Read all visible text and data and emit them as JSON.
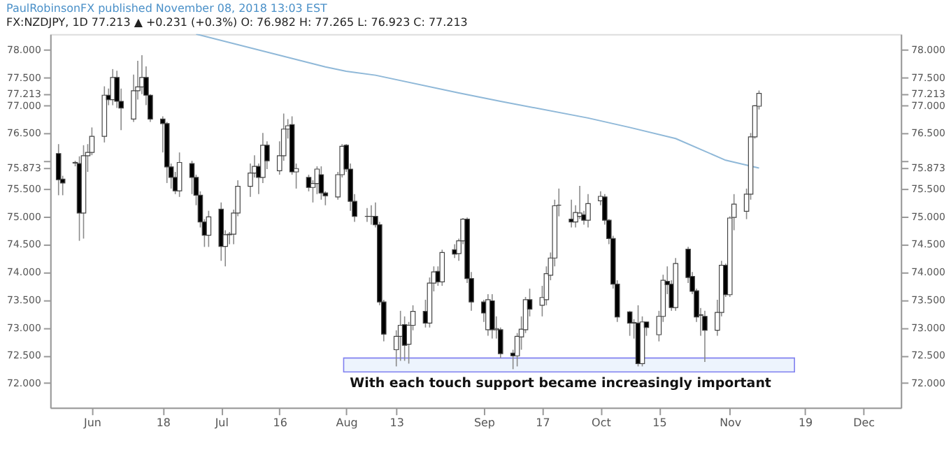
{
  "chart_data": {
    "type": "candlestick",
    "title": "PaulRobinsonFX published November 08, 2018 13:03 EST",
    "subtitle": "FX:NZDJPY, 1D 77.213 ▲ +0.231 (+0.3%) O: 76.982 H: 77.265 L: 76.923 C: 77.213",
    "annotations": [
      "With each touch support became increasingly important"
    ],
    "x": [
      "2018-05-24",
      "2018-05-25",
      "2018-05-28",
      "2018-05-29",
      "2018-05-30",
      "2018-05-31",
      "2018-06-01",
      "2018-06-04",
      "2018-06-05",
      "2018-06-06",
      "2018-06-07",
      "2018-06-08",
      "2018-06-11",
      "2018-06-12",
      "2018-06-13",
      "2018-06-14",
      "2018-06-15",
      "2018-06-18",
      "2018-06-19",
      "2018-06-20",
      "2018-06-21",
      "2018-06-22",
      "2018-06-25",
      "2018-06-26",
      "2018-06-27",
      "2018-06-28",
      "2018-06-29",
      "2018-07-02",
      "2018-07-03",
      "2018-07-04",
      "2018-07-05",
      "2018-07-06",
      "2018-07-09",
      "2018-07-10",
      "2018-07-11",
      "2018-07-12",
      "2018-07-13",
      "2018-07-16",
      "2018-07-17",
      "2018-07-18",
      "2018-07-19",
      "2018-07-20",
      "2018-07-23",
      "2018-07-24",
      "2018-07-25",
      "2018-07-26",
      "2018-07-27",
      "2018-07-30",
      "2018-07-31",
      "2018-08-01",
      "2018-08-02",
      "2018-08-03",
      "2018-08-06",
      "2018-08-07",
      "2018-08-08",
      "2018-08-09",
      "2018-08-10",
      "2018-08-13",
      "2018-08-14",
      "2018-08-15",
      "2018-08-16",
      "2018-08-17",
      "2018-08-20",
      "2018-08-21",
      "2018-08-22",
      "2018-08-23",
      "2018-08-24",
      "2018-08-27",
      "2018-08-28",
      "2018-08-29",
      "2018-08-30",
      "2018-08-31",
      "2018-09-03",
      "2018-09-04",
      "2018-09-05",
      "2018-09-06",
      "2018-09-07",
      "2018-09-10",
      "2018-09-11",
      "2018-09-12",
      "2018-09-13",
      "2018-09-14",
      "2018-09-17",
      "2018-09-18",
      "2018-09-19",
      "2018-09-20",
      "2018-09-21",
      "2018-09-24",
      "2018-09-25",
      "2018-09-26",
      "2018-09-27",
      "2018-09-28",
      "2018-10-01",
      "2018-10-02",
      "2018-10-03",
      "2018-10-04",
      "2018-10-05",
      "2018-10-08",
      "2018-10-09",
      "2018-10-10",
      "2018-10-11",
      "2018-10-12",
      "2018-10-15",
      "2018-10-16",
      "2018-10-17",
      "2018-10-18",
      "2018-10-19",
      "2018-10-22",
      "2018-10-23",
      "2018-10-24",
      "2018-10-25",
      "2018-10-26",
      "2018-10-29",
      "2018-10-30",
      "2018-10-31",
      "2018-11-01",
      "2018-11-02",
      "2018-11-05",
      "2018-11-06",
      "2018-11-07",
      "2018-11-08"
    ],
    "ohlc": [
      [
        76.13,
        76.3,
        75.38,
        75.66
      ],
      [
        75.67,
        75.73,
        75.38,
        75.6
      ],
      [
        75.97,
        76.0,
        75.9,
        75.96
      ],
      [
        75.95,
        76.08,
        74.56,
        75.06
      ],
      [
        75.06,
        76.28,
        74.6,
        76.09
      ],
      [
        76.09,
        76.3,
        75.8,
        76.15
      ],
      [
        76.15,
        76.6,
        76.1,
        76.44
      ],
      [
        76.44,
        77.34,
        76.33,
        77.18
      ],
      [
        77.18,
        77.3,
        77.0,
        77.1
      ],
      [
        77.1,
        77.65,
        77.0,
        77.5
      ],
      [
        77.5,
        77.62,
        76.95,
        77.07
      ],
      [
        77.07,
        77.3,
        76.55,
        76.95
      ],
      [
        76.75,
        77.55,
        76.7,
        77.26
      ],
      [
        77.26,
        77.8,
        77.1,
        77.33
      ],
      [
        77.33,
        77.9,
        77.2,
        77.5
      ],
      [
        77.5,
        77.7,
        77.0,
        77.18
      ],
      [
        77.18,
        77.2,
        76.7,
        76.75
      ],
      [
        76.75,
        76.8,
        76.15,
        76.67
      ],
      [
        76.67,
        76.7,
        75.6,
        75.89
      ],
      [
        75.89,
        75.95,
        75.5,
        75.7
      ],
      [
        75.7,
        75.8,
        75.4,
        75.46
      ],
      [
        75.46,
        76.15,
        75.35,
        75.97
      ],
      [
        75.95,
        76.0,
        75.4,
        75.7
      ],
      [
        75.7,
        75.75,
        75.2,
        75.38
      ],
      [
        75.38,
        75.45,
        74.8,
        74.9
      ],
      [
        74.9,
        74.95,
        74.45,
        74.66
      ],
      [
        74.66,
        75.1,
        74.45,
        74.99
      ],
      [
        75.13,
        75.25,
        74.2,
        74.46
      ],
      [
        74.46,
        74.75,
        74.1,
        74.67
      ],
      [
        74.68,
        74.72,
        74.5,
        74.67
      ],
      [
        74.68,
        75.12,
        74.5,
        75.06
      ],
      [
        75.06,
        75.65,
        75.0,
        75.54
      ],
      [
        75.54,
        75.95,
        75.35,
        75.78
      ],
      [
        75.78,
        76.1,
        75.7,
        75.9
      ],
      [
        75.9,
        75.95,
        75.4,
        75.7
      ],
      [
        75.7,
        76.5,
        75.6,
        76.28
      ],
      [
        76.28,
        76.35,
        75.85,
        76.0
      ],
      [
        75.82,
        76.35,
        75.75,
        76.09
      ],
      [
        76.09,
        76.85,
        76.0,
        76.57
      ],
      [
        76.57,
        76.75,
        76.4,
        76.63
      ],
      [
        76.65,
        76.8,
        75.75,
        75.8
      ],
      [
        75.8,
        75.95,
        75.5,
        75.86
      ],
      [
        75.7,
        75.75,
        75.45,
        75.52
      ],
      [
        75.52,
        75.65,
        75.25,
        75.59
      ],
      [
        75.59,
        75.9,
        75.4,
        75.85
      ],
      [
        75.75,
        75.9,
        75.3,
        75.42
      ],
      [
        75.42,
        75.45,
        75.2,
        75.37
      ],
      [
        75.35,
        75.8,
        75.3,
        75.75
      ],
      [
        75.75,
        76.3,
        75.7,
        76.26
      ],
      [
        76.28,
        76.3,
        75.8,
        75.85
      ],
      [
        75.85,
        75.95,
        75.1,
        75.27
      ],
      [
        75.27,
        75.4,
        74.9,
        75.0
      ],
      [
        75.0,
        75.15,
        74.9,
        75.0
      ],
      [
        75.0,
        75.2,
        74.85,
        75.0
      ],
      [
        75.0,
        75.25,
        74.8,
        74.85
      ],
      [
        74.85,
        74.9,
        73.4,
        73.46
      ],
      [
        73.46,
        73.5,
        72.75,
        72.88
      ],
      [
        72.6,
        72.95,
        72.3,
        72.84
      ],
      [
        72.84,
        73.3,
        72.4,
        73.04
      ],
      [
        73.05,
        73.2,
        72.4,
        72.68
      ],
      [
        72.7,
        73.1,
        72.35,
        73.04
      ],
      [
        73.04,
        73.4,
        72.95,
        73.29
      ],
      [
        73.29,
        73.5,
        73.0,
        73.08
      ],
      [
        73.08,
        73.9,
        73.0,
        73.8
      ],
      [
        73.8,
        74.1,
        73.65,
        74.0
      ],
      [
        74.01,
        74.1,
        73.75,
        73.82
      ],
      [
        73.82,
        74.4,
        73.75,
        74.35
      ],
      [
        74.4,
        74.5,
        74.25,
        74.32
      ],
      [
        74.33,
        74.6,
        74.2,
        74.56
      ],
      [
        74.56,
        74.97,
        74.5,
        74.95
      ],
      [
        74.95,
        74.98,
        73.8,
        73.88
      ],
      [
        73.88,
        74.0,
        73.3,
        73.46
      ],
      [
        73.46,
        73.5,
        73.1,
        73.26
      ],
      [
        72.96,
        73.6,
        72.85,
        73.5
      ],
      [
        73.48,
        73.6,
        72.8,
        72.96
      ],
      [
        72.96,
        73.2,
        72.8,
        72.98
      ],
      [
        72.96,
        73.0,
        72.45,
        72.53
      ],
      [
        72.54,
        72.6,
        72.25,
        72.49
      ],
      [
        72.49,
        72.9,
        72.3,
        72.84
      ],
      [
        72.83,
        73.2,
        72.6,
        72.97
      ],
      [
        72.96,
        73.55,
        72.9,
        73.5
      ],
      [
        73.5,
        73.7,
        73.2,
        73.33
      ],
      [
        73.4,
        73.75,
        73.2,
        73.54
      ],
      [
        73.5,
        74.1,
        73.4,
        73.97
      ],
      [
        73.94,
        74.35,
        73.85,
        74.25
      ],
      [
        74.25,
        75.3,
        74.1,
        75.19
      ],
      [
        75.2,
        75.5,
        75.0,
        75.2
      ],
      [
        74.95,
        75.3,
        74.8,
        74.9
      ],
      [
        74.9,
        75.2,
        74.8,
        75.07
      ],
      [
        75.0,
        75.55,
        74.95,
        75.06
      ],
      [
        75.03,
        75.1,
        74.85,
        74.93
      ],
      [
        74.93,
        75.4,
        74.8,
        75.23
      ],
      [
        75.28,
        75.45,
        75.2,
        75.36
      ],
      [
        75.35,
        75.4,
        74.85,
        74.93
      ],
      [
        74.93,
        74.95,
        74.5,
        74.6
      ],
      [
        74.6,
        74.65,
        73.7,
        73.78
      ],
      [
        73.78,
        73.85,
        73.1,
        73.19
      ],
      [
        73.28,
        73.3,
        72.85,
        73.08
      ],
      [
        73.09,
        73.15,
        72.8,
        73.08
      ],
      [
        73.08,
        73.4,
        72.3,
        72.35
      ],
      [
        72.35,
        73.2,
        72.3,
        73.1
      ],
      [
        73.1,
        73.1,
        72.85,
        73.0
      ],
      [
        72.87,
        73.3,
        72.75,
        73.2
      ],
      [
        73.2,
        73.95,
        73.1,
        73.85
      ],
      [
        73.83,
        74.1,
        73.6,
        73.77
      ],
      [
        73.78,
        73.85,
        73.3,
        73.36
      ],
      [
        73.36,
        74.25,
        73.3,
        74.15
      ],
      [
        74.41,
        74.45,
        73.8,
        73.9
      ],
      [
        73.92,
        74.0,
        73.6,
        73.65
      ],
      [
        73.66,
        73.7,
        73.1,
        73.19
      ],
      [
        73.23,
        73.35,
        72.85,
        73.22
      ],
      [
        73.2,
        73.3,
        72.38,
        72.95
      ],
      [
        72.95,
        73.5,
        72.85,
        73.27
      ],
      [
        73.27,
        74.2,
        73.2,
        74.12
      ],
      [
        74.12,
        74.15,
        73.55,
        73.59
      ],
      [
        73.59,
        75.0,
        73.55,
        74.97
      ],
      [
        74.98,
        75.4,
        74.75,
        75.22
      ],
      [
        75.09,
        75.5,
        74.95,
        75.4
      ],
      [
        75.4,
        76.5,
        75.3,
        76.43
      ],
      [
        76.43,
        77.0,
        76.4,
        76.99
      ],
      [
        76.982,
        77.265,
        76.923,
        77.213
      ]
    ],
    "series": [
      {
        "type": "line",
        "color": "#8fb8d8",
        "x": [
          "2018-06-26",
          "2018-07-27",
          "2018-08-01",
          "2018-08-08",
          "2018-08-28",
          "2018-09-07",
          "2018-09-28",
          "2018-10-08",
          "2018-10-19",
          "2018-10-31",
          "2018-11-08"
        ],
        "values": [
          78.28,
          77.69,
          77.61,
          77.54,
          77.22,
          77.07,
          76.77,
          76.6,
          76.4,
          76.01,
          75.87
        ]
      }
    ],
    "bands": [
      {
        "axis": "y",
        "from": 72.2,
        "to": 72.45,
        "color": "#edf4fd"
      }
    ],
    "xlim": [
      "2018-05-22",
      "2018-12-12"
    ],
    "xticks": [
      {
        "value": "2018-06-01",
        "label": "Jun"
      },
      {
        "value": "2018-06-18",
        "label": "18"
      },
      {
        "value": "2018-07-02",
        "label": "Jul"
      },
      {
        "value": "2018-07-16",
        "label": "16"
      },
      {
        "value": "2018-08-01",
        "label": "Aug"
      },
      {
        "value": "2018-08-13",
        "label": "13"
      },
      {
        "value": "2018-09-03",
        "label": "Sep"
      },
      {
        "value": "2018-09-17",
        "label": "17"
      },
      {
        "value": "2018-10-01",
        "label": "Oct"
      },
      {
        "value": "2018-10-15",
        "label": "15"
      },
      {
        "value": "2018-11-01",
        "label": "Nov"
      },
      {
        "value": "2018-11-19",
        "label": "19"
      },
      {
        "value": "2018-12-03",
        "label": "Dec"
      }
    ],
    "ylim": [
      71.56,
      78.28
    ],
    "yticks": [
      {
        "value": 72,
        "label": "72.000"
      },
      {
        "value": 72.5,
        "label": "72.500"
      },
      {
        "value": 73,
        "label": "73.000"
      },
      {
        "value": 73.5,
        "label": "73.500"
      },
      {
        "value": 74,
        "label": "74.000"
      },
      {
        "value": 74.5,
        "label": "74.500"
      },
      {
        "value": 75,
        "label": "75.000"
      },
      {
        "value": 75.5,
        "label": "75.500"
      },
      {
        "value": 75.873,
        "label": "75.873"
      },
      {
        "value": 76,
        "label": null
      },
      {
        "value": 76.5,
        "label": "76.500"
      },
      {
        "value": 77,
        "label": "77.000"
      },
      {
        "value": 77.213,
        "label": "77.213"
      },
      {
        "value": 77.5,
        "label": "77.500"
      },
      {
        "value": 78,
        "label": "78.000"
      }
    ],
    "y2lim": [
      71.56,
      78.28
    ],
    "y2ticks": [
      {
        "value": 72,
        "label": "72.000"
      },
      {
        "value": 72.5,
        "label": "72.500"
      },
      {
        "value": 73,
        "label": "73.000"
      },
      {
        "value": 73.5,
        "label": "73.500"
      },
      {
        "value": 74,
        "label": "74.000"
      },
      {
        "value": 74.5,
        "label": "74.500"
      },
      {
        "value": 75,
        "label": "75.000"
      },
      {
        "value": 75.5,
        "label": "75.500"
      },
      {
        "value": 75.873,
        "label": "75.873"
      },
      {
        "value": 76,
        "label": null
      },
      {
        "value": 76.5,
        "label": "76.500"
      },
      {
        "value": 77,
        "label": "77.000"
      },
      {
        "value": 77.213,
        "label": "77.213"
      },
      {
        "value": 77.5,
        "label": "77.500"
      },
      {
        "value": 78,
        "label": "78.000"
      }
    ]
  }
}
